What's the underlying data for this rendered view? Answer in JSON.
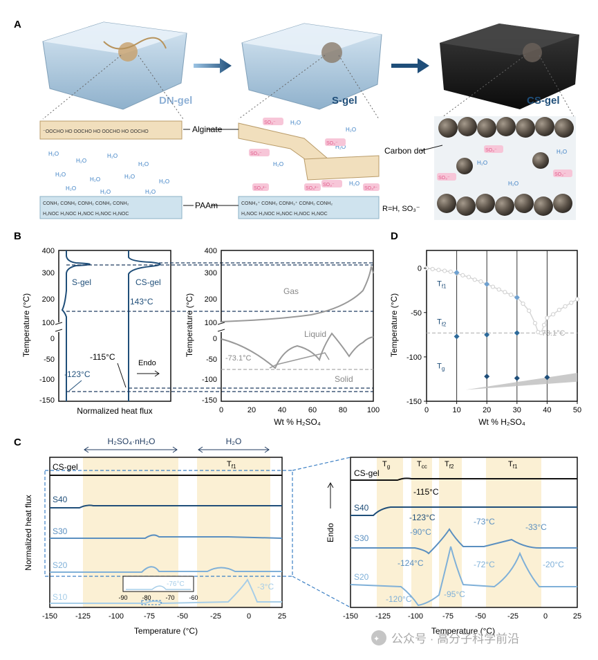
{
  "panels": {
    "a": "A",
    "b": "B",
    "c": "C",
    "d": "D"
  },
  "panel_a": {
    "gels": [
      "DN-gel",
      "S-gel",
      "CS-gel"
    ],
    "labels": {
      "alginate": "Alginate",
      "paam": "PAAm",
      "carbon_dot": "Carbon dot",
      "r_group": "R=H, SO₃⁻"
    }
  },
  "panel_b": {
    "left": {
      "curves": [
        "S-gel",
        "CS-gel"
      ],
      "annotations": [
        "143°C",
        "-115°C",
        "-123°C",
        "Endo"
      ],
      "ylabel": "Temperature (°C)",
      "xlabel": "Normalized heat flux",
      "yticks_top": [
        "400",
        "300",
        "200",
        "100"
      ],
      "yticks_bottom": [
        "0",
        "-50",
        "-100",
        "-150"
      ]
    },
    "right": {
      "regions": [
        "Gas",
        "Liquid",
        "Solid"
      ],
      "annotation": "-73.1°C",
      "ylabel": "Temperature (°C)",
      "xlabel": "Wt % H₂SO₄",
      "xticks": [
        "0",
        "20",
        "40",
        "60",
        "80",
        "100"
      ]
    }
  },
  "panel_c": {
    "left": {
      "bands": [
        "H₂SO₄·nH₂O",
        "H₂O"
      ],
      "band_tf1": "T",
      "samples": [
        "CS-gel",
        "S40",
        "S30",
        "S20",
        "S10"
      ],
      "inset_ticks": [
        "-90",
        "-80",
        "-70",
        "-60"
      ],
      "inset_label": "-76°C",
      "peak_label": "-3°C",
      "ylabel": "Normalized heat flux",
      "xlabel": "Temperature (°C)",
      "xticks": [
        "-150",
        "-125",
        "-100",
        "-75",
        "-50",
        "-25",
        "0",
        "25"
      ]
    },
    "right": {
      "bands": [
        "Tg",
        "Tcc",
        "Tf2",
        "Tf1"
      ],
      "samples": [
        "CS-gel",
        "S40",
        "S30",
        "S20"
      ],
      "annotations": [
        "-115°C",
        "-123°C",
        "-90°C",
        "-73°C",
        "-33°C",
        "-124°C",
        "-72°C",
        "-20°C",
        "-120°C",
        "-95°C"
      ],
      "endo": "Endo",
      "xlabel": "Temperature (°C)",
      "xticks": [
        "-150",
        "-125",
        "-100",
        "-75",
        "-50",
        "-25",
        "0",
        "25"
      ]
    }
  },
  "chart_data": [
    {
      "type": "scatter",
      "panel": "D",
      "xlabel": "Wt % H₂SO₄",
      "ylabel": "Temperature (°C)",
      "xlim": [
        0,
        50
      ],
      "ylim": [
        -150,
        20
      ],
      "xticks": [
        "0",
        "10",
        "20",
        "30",
        "40",
        "50"
      ],
      "yticks": [
        "0",
        "-50",
        "-100",
        "-150"
      ],
      "series": [
        {
          "name": "T",
          "x": [
            10,
            20,
            30
          ],
          "y": [
            -5,
            -18,
            -33
          ]
        },
        {
          "name": "T",
          "x": [
            10,
            20,
            30
          ],
          "y": [
            -77,
            -75,
            -73
          ]
        },
        {
          "name": "T",
          "x": [
            20,
            30,
            40
          ],
          "y": [
            -122,
            -124,
            -123
          ]
        }
      ],
      "series_labels": [
        "T",
        "T",
        "T"
      ],
      "series_subscripts": [
        "f1",
        "f2",
        "g"
      ],
      "reference_line": {
        "y": -73.1,
        "label": "-73.1°C"
      },
      "reference_curve": {
        "x": [
          0,
          2,
          4,
          6,
          8,
          10,
          12,
          14,
          16,
          18,
          20,
          22,
          24,
          26,
          28,
          30,
          32,
          34,
          36,
          37,
          38,
          39,
          40,
          42,
          44,
          46,
          48,
          50
        ],
        "y": [
          0,
          -1,
          -2,
          -3,
          -4,
          -6,
          -8,
          -10,
          -13,
          -15,
          -18,
          -21,
          -24,
          -27,
          -30,
          -33,
          -40,
          -48,
          -62,
          -72,
          -73,
          -64,
          -56,
          -52,
          -47,
          -43,
          -39,
          -35
        ]
      }
    }
  ],
  "watermark": "公众号 · 高分子科学前沿"
}
